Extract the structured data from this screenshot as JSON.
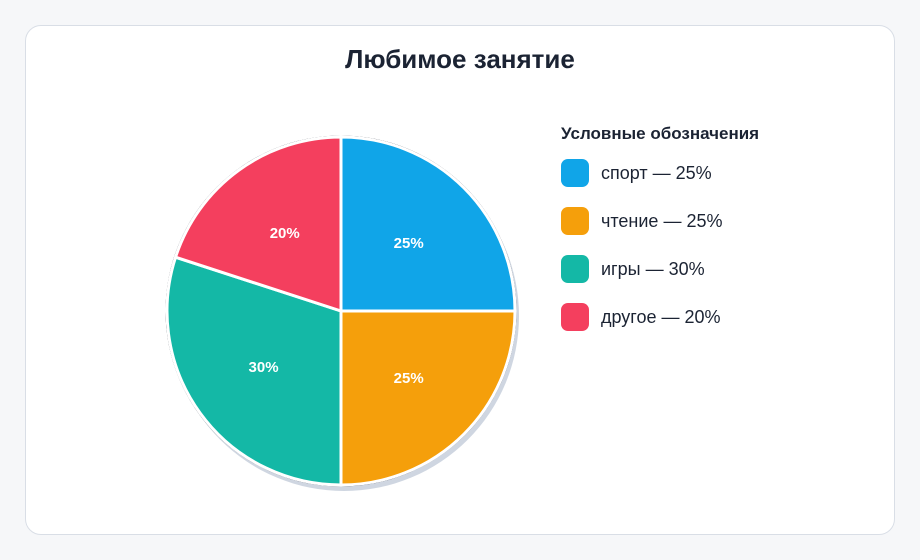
{
  "chart_data": {
    "type": "pie",
    "title": "Любимое занятие",
    "categories": [
      "спорт",
      "чтение",
      "игры",
      "другое"
    ],
    "values": [
      25,
      25,
      30,
      20
    ],
    "slice_labels": [
      "25%",
      "25%",
      "30%",
      "20%"
    ],
    "colors": [
      "#10a5e8",
      "#f59f0b",
      "#14b8a6",
      "#f43f5e"
    ],
    "legend_position": "right",
    "legend": {
      "title": "Условные обозначения",
      "items": [
        {
          "label": "спорт — 25%",
          "color": "#10a5e8"
        },
        {
          "label": "чтение — 25%",
          "color": "#f59f0b"
        },
        {
          "label": "игры — 30%",
          "color": "#14b8a6"
        },
        {
          "label": "другое — 20%",
          "color": "#f43f5e"
        }
      ]
    }
  }
}
